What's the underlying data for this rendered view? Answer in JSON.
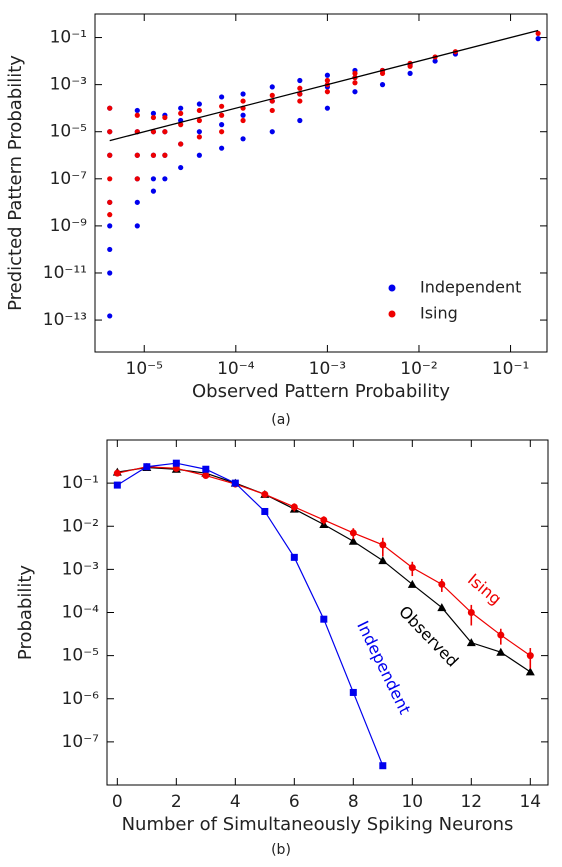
{
  "chart_data": [
    {
      "type": "scatter",
      "caption": "(a)",
      "x_label": "Observed Pattern Probability",
      "y_label": "Predicted Pattern Probability",
      "xscale": "log",
      "yscale": "log",
      "xlim": [
        2.9e-06,
        0.25
      ],
      "ylim": [
        4.4e-15,
        1
      ],
      "xticks": [
        {
          "value": 1e-05,
          "label": "10⁻⁵"
        },
        {
          "value": 0.0001,
          "label": "10⁻⁴"
        },
        {
          "value": 0.001,
          "label": "10⁻³"
        },
        {
          "value": 0.01,
          "label": "10⁻²"
        },
        {
          "value": 0.1,
          "label": "10⁻¹"
        }
      ],
      "yticks": [
        {
          "value": 1e-13,
          "label": "10⁻¹³"
        },
        {
          "value": 1e-11,
          "label": "10⁻¹¹"
        },
        {
          "value": 1e-09,
          "label": "10⁻⁹"
        },
        {
          "value": 1e-07,
          "label": "10⁻⁷"
        },
        {
          "value": 1e-05,
          "label": "10⁻⁵"
        },
        {
          "value": 0.001,
          "label": "10⁻³"
        },
        {
          "value": 0.1,
          "label": "10⁻¹"
        }
      ],
      "legend": "lower right",
      "reference_line": {
        "color": "#000000",
        "x": [
          4.2e-06,
          0.2
        ],
        "values": [
          4.2e-06,
          0.2
        ]
      },
      "series": [
        {
          "name": "Independent",
          "color": "#0000ee",
          "x": [
            4.2e-06,
            4.2e-06,
            4.2e-06,
            4.2e-06,
            4.2e-06,
            4.2e-06,
            4.2e-06,
            4.2e-06,
            8.4e-06,
            8.4e-06,
            8.4e-06,
            8.4e-06,
            8.4e-06,
            8.4e-06,
            1.26e-05,
            1.26e-05,
            1.26e-05,
            1.26e-05,
            1.26e-05,
            1.68e-05,
            1.68e-05,
            1.68e-05,
            1.68e-05,
            2.5e-05,
            2.5e-05,
            2.5e-05,
            2.5e-05,
            4e-05,
            4e-05,
            4e-05,
            7e-05,
            7e-05,
            7e-05,
            0.00012,
            0.00012,
            0.00012,
            0.00025,
            0.00025,
            0.00025,
            0.0005,
            0.0005,
            0.0005,
            0.001,
            0.001,
            0.001,
            0.002,
            0.002,
            0.002,
            0.004,
            0.004,
            0.008,
            0.008,
            0.015,
            0.025,
            0.2
          ],
          "values": [
            1.5e-13,
            1e-11,
            1e-10,
            1e-09,
            1e-08,
            1e-06,
            1e-05,
            0.0001,
            1e-09,
            1e-08,
            1e-07,
            1e-06,
            1e-05,
            8e-05,
            3e-08,
            1e-07,
            1e-06,
            1e-05,
            6e-05,
            1e-07,
            1e-06,
            1e-05,
            5e-05,
            3e-07,
            3e-06,
            3e-05,
            0.0001,
            1e-06,
            1e-05,
            0.00015,
            2e-06,
            2e-05,
            0.0003,
            5e-06,
            5e-05,
            0.0004,
            1e-05,
            0.0002,
            0.0008,
            3e-05,
            0.0004,
            0.0015,
            0.0001,
            0.0008,
            0.0025,
            0.0005,
            0.002,
            0.004,
            0.001,
            0.004,
            0.003,
            0.007,
            0.01,
            0.02,
            0.09
          ]
        },
        {
          "name": "Ising",
          "color": "#ee0000",
          "x": [
            4.2e-06,
            4.2e-06,
            4.2e-06,
            4.2e-06,
            4.2e-06,
            4.2e-06,
            8.4e-06,
            8.4e-06,
            8.4e-06,
            8.4e-06,
            1.26e-05,
            1.26e-05,
            1.26e-05,
            1.68e-05,
            1.68e-05,
            1.68e-05,
            2.5e-05,
            2.5e-05,
            2.5e-05,
            4e-05,
            4e-05,
            4e-05,
            7e-05,
            7e-05,
            7e-05,
            0.00012,
            0.00012,
            0.00012,
            0.00025,
            0.00025,
            0.00025,
            0.0005,
            0.0005,
            0.0005,
            0.001,
            0.001,
            0.001,
            0.002,
            0.002,
            0.002,
            0.004,
            0.004,
            0.008,
            0.008,
            0.015,
            0.025,
            0.2
          ],
          "values": [
            3e-09,
            1e-08,
            1e-07,
            1e-06,
            1e-05,
            0.0001,
            1e-07,
            1e-06,
            1e-05,
            5e-05,
            1e-06,
            1e-05,
            4e-05,
            1e-06,
            1e-05,
            4e-05,
            3e-06,
            2e-05,
            6e-05,
            6e-06,
            3e-05,
            8e-05,
            1e-05,
            5e-05,
            0.00012,
            3e-05,
            0.0001,
            0.0002,
            8e-05,
            0.0002,
            0.00035,
            0.0002,
            0.0004,
            0.0007,
            0.0005,
            0.001,
            0.0015,
            0.0012,
            0.002,
            0.003,
            0.003,
            0.004,
            0.006,
            0.008,
            0.015,
            0.025,
            0.15
          ]
        }
      ]
    },
    {
      "type": "line",
      "caption": "(b)",
      "x_label": "Number of Simultaneously Spiking Neurons",
      "y_label": "Probability",
      "yscale": "log",
      "xlim": [
        -0.35,
        14.6
      ],
      "ylim": [
        1e-08,
        1
      ],
      "xticks": [
        0,
        2,
        4,
        6,
        8,
        10,
        12,
        14
      ],
      "yticks": [
        {
          "value": 1e-07,
          "label": "10⁻⁷"
        },
        {
          "value": 1e-06,
          "label": "10⁻⁶"
        },
        {
          "value": 1e-05,
          "label": "10⁻⁵"
        },
        {
          "value": 0.0001,
          "label": "10⁻⁴"
        },
        {
          "value": 0.001,
          "label": "10⁻³"
        },
        {
          "value": 0.01,
          "label": "10⁻²"
        },
        {
          "value": 0.1,
          "label": "10⁻¹"
        }
      ],
      "series": [
        {
          "name": "Observed",
          "color": "#000000",
          "marker": "triangle",
          "x": [
            0,
            1,
            2,
            3,
            4,
            5,
            6,
            7,
            8,
            9,
            10,
            11,
            12,
            13,
            14
          ],
          "values": [
            0.18,
            0.23,
            0.21,
            0.17,
            0.1,
            0.055,
            0.025,
            0.011,
            0.0045,
            0.0016,
            0.00045,
            0.00013,
            2e-05,
            1.2e-05,
            4.2e-06
          ]
        },
        {
          "name": "Ising",
          "color": "#ee0000",
          "marker": "circle",
          "x": [
            0,
            1,
            2,
            3,
            4,
            5,
            6,
            7,
            8,
            9,
            10,
            11,
            12,
            13,
            14
          ],
          "values": [
            0.17,
            0.24,
            0.22,
            0.15,
            0.095,
            0.055,
            0.028,
            0.014,
            0.007,
            0.0037,
            0.0011,
            0.00045,
            0.0001,
            3e-05,
            1e-05
          ],
          "errors": [
            0.01,
            0.015,
            0.015,
            0.015,
            0.01,
            0.008,
            0.006,
            0.003,
            0.002,
            0.0017,
            0.0004,
            0.00015,
            5e-05,
            1.2e-05,
            5e-06
          ]
        },
        {
          "name": "Independent",
          "color": "#0000ee",
          "marker": "square",
          "x": [
            0,
            1,
            2,
            3,
            4,
            5,
            6,
            7,
            8,
            9
          ],
          "values": [
            0.09,
            0.24,
            0.29,
            0.21,
            0.1,
            0.022,
            0.0019,
            7e-05,
            1.4e-06,
            2.8e-08
          ]
        }
      ]
    }
  ]
}
